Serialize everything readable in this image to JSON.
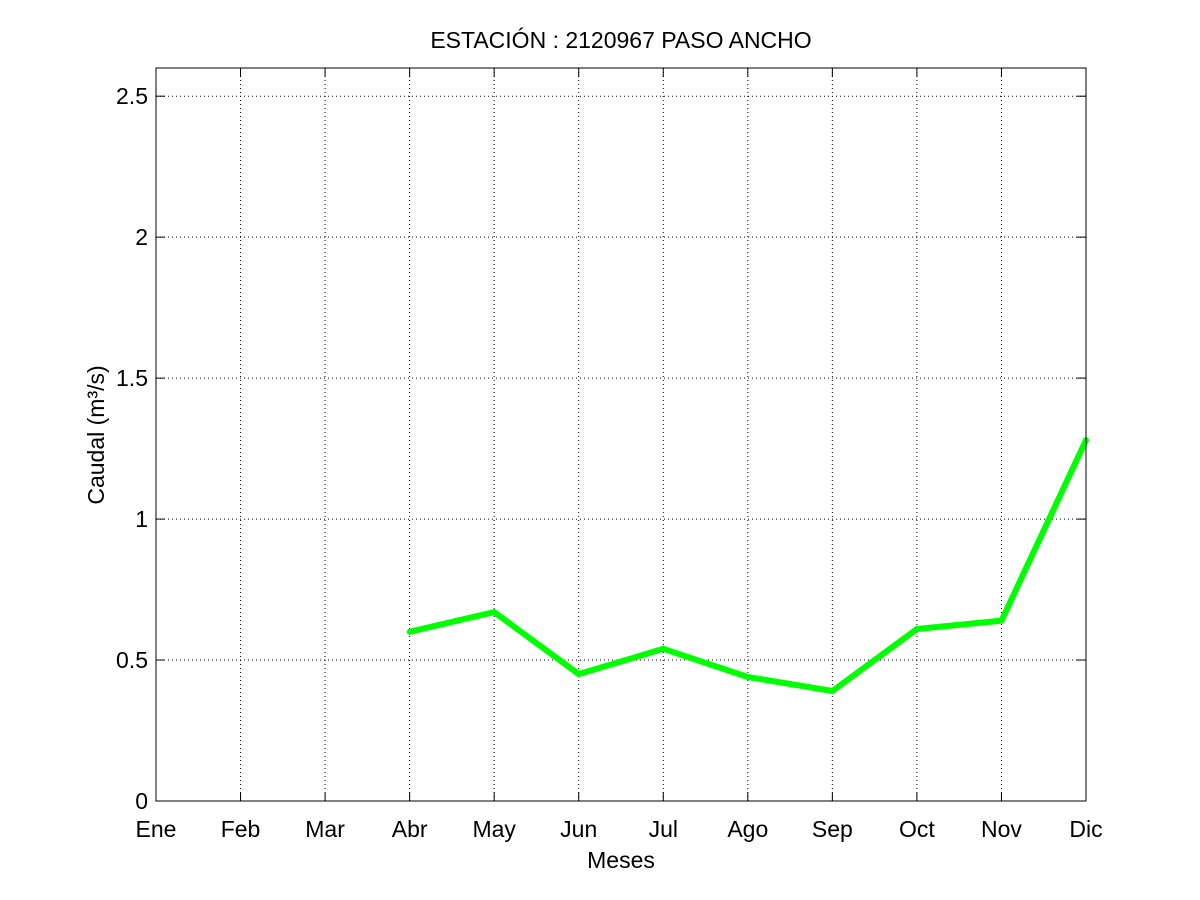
{
  "chart_data": {
    "type": "line",
    "title": "ESTACIÓN :  2120967  PASO ANCHO",
    "xlabel": "Meses",
    "ylabel": "Caudal (m³/s)",
    "categories": [
      "Ene",
      "Feb",
      "Mar",
      "Abr",
      "May",
      "Jun",
      "Jul",
      "Ago",
      "Sep",
      "Oct",
      "Nov",
      "Dic"
    ],
    "ylim": [
      0,
      2.6
    ],
    "yticks": [
      0,
      0.5,
      1,
      1.5,
      2,
      2.5
    ],
    "ytick_labels": [
      "0",
      "0.5",
      "1",
      "1.5",
      "2",
      "2.5"
    ],
    "grid": true,
    "series": [
      {
        "color": "#00ff00",
        "values": [
          null,
          null,
          null,
          0.6,
          0.67,
          0.45,
          0.54,
          0.44,
          0.39,
          0.61,
          0.64,
          1.28
        ]
      }
    ]
  }
}
